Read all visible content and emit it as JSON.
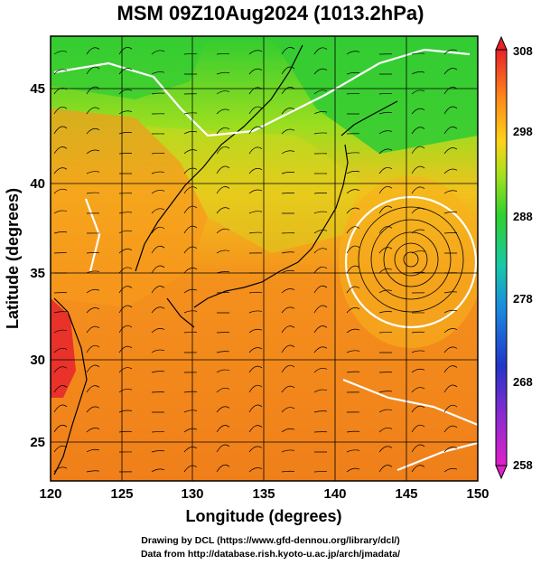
{
  "title": "MSM 09Z10Aug2024 (1013.2hPa)",
  "axes": {
    "xlabel": "Longitude (degrees)",
    "ylabel": "Latitude  (degrees)",
    "x_ticks": [
      "120",
      "125",
      "130",
      "135",
      "140",
      "145",
      "150"
    ],
    "y_ticks": [
      "25",
      "30",
      "35",
      "40",
      "45"
    ]
  },
  "colorbar": {
    "labels": [
      "308",
      "298",
      "288",
      "278",
      "268",
      "258"
    ],
    "colors": [
      "#e8212a",
      "#ff8c1a",
      "#ffd21a",
      "#a7e01e",
      "#2fd02f",
      "#18c8a8",
      "#1a8ce0",
      "#2235c8",
      "#8a2bd0",
      "#e020c8"
    ]
  },
  "map": {
    "region": "Japan and surrounding seas",
    "lon_range": [
      120,
      150
    ],
    "lat_range": [
      22.5,
      47.5
    ],
    "features": [
      "temperature shading",
      "streamlines",
      "white isotherms",
      "typhoon vortex near 146E 36N"
    ]
  },
  "credits": {
    "line1": "Drawing by DCL (https://www.gfd-dennou.org/library/dcl/)",
    "line2": "Data from http://database.rish.kyoto-u.ac.jp/arch/jmadata/"
  }
}
